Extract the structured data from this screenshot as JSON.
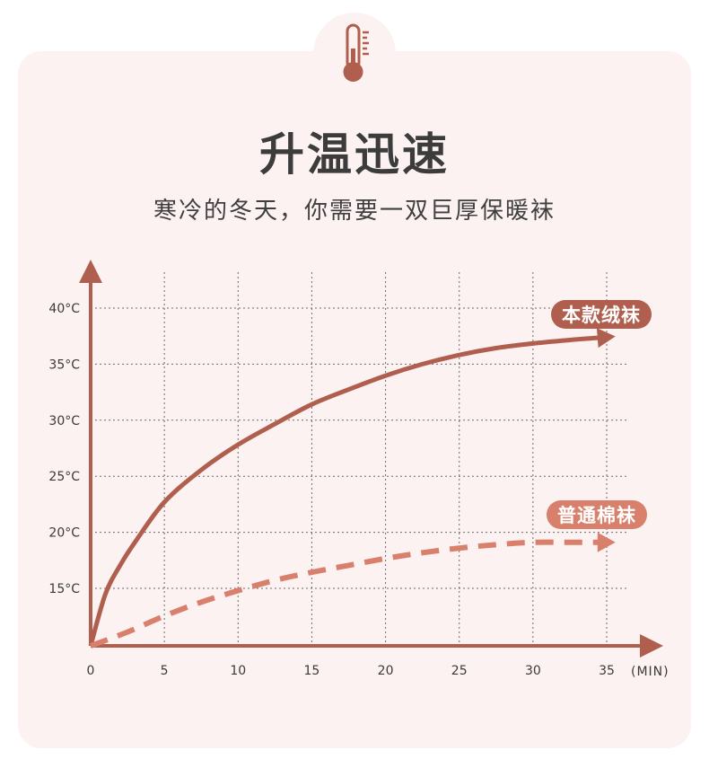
{
  "header": {
    "title": "升温迅速",
    "subtitle": "寒冷的冬天，你需要一双巨厚保暖袜"
  },
  "icon": "thermometer-icon",
  "colors": {
    "background": "#fcf2f1",
    "axis": "#b05f4f",
    "series_primary": "#b05f4f",
    "series_secondary": "#d8806b",
    "grid": "#4a4a4a"
  },
  "chart_data": {
    "type": "line",
    "xlabel": "(MIN)",
    "ylabel": "",
    "x_ticks": [
      0,
      5,
      10,
      15,
      20,
      25,
      30,
      35
    ],
    "y_ticks": [
      "15°C",
      "20°C",
      "25°C",
      "30°C",
      "35°C",
      "40°C"
    ],
    "y_tick_values": [
      15,
      20,
      25,
      30,
      35,
      40
    ],
    "xlim": [
      0,
      37
    ],
    "ylim": [
      10,
      43
    ],
    "grid": true,
    "series": [
      {
        "name": "本款绒袜",
        "style": "solid",
        "x": [
          0,
          1,
          2,
          3,
          5,
          7.5,
          10,
          12.5,
          15,
          17.5,
          20,
          22.5,
          25,
          27.5,
          30,
          32.5,
          34.5
        ],
        "y": [
          10,
          14.5,
          17,
          19,
          22.5,
          25.3,
          27.5,
          29.3,
          31,
          32.3,
          33.5,
          34.5,
          35.3,
          35.9,
          36.3,
          36.6,
          36.8
        ]
      },
      {
        "name": "普通棉袜",
        "style": "dashed",
        "x": [
          0,
          2.5,
          5,
          7.5,
          10,
          12.5,
          15,
          17.5,
          20,
          22.5,
          25,
          27.5,
          30,
          32.5,
          34.5
        ],
        "y": [
          10,
          11.2,
          12.6,
          13.8,
          14.8,
          15.7,
          16.4,
          17,
          17.6,
          18.1,
          18.5,
          18.8,
          19,
          19,
          19
        ]
      }
    ]
  }
}
